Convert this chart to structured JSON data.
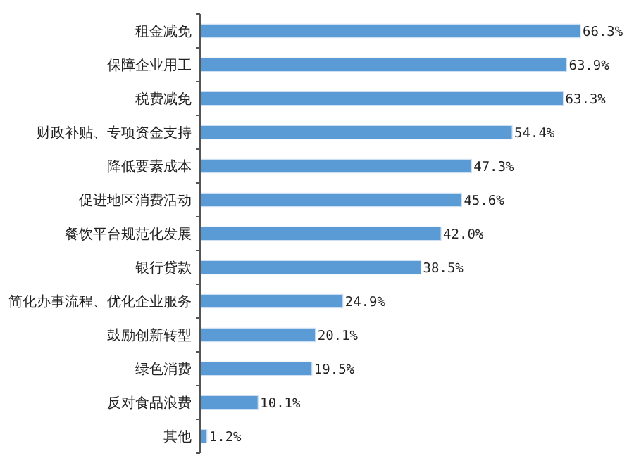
{
  "chart_data": {
    "type": "bar",
    "orientation": "horizontal",
    "categories": [
      "租金减免",
      "保障企业用工",
      "税费减免",
      "财政补贴、专项资金支持",
      "降低要素成本",
      "促进地区消费活动",
      "餐饮平台规范化发展",
      "银行贷款",
      "简化办事流程、优化企业服务",
      "鼓励创新转型",
      "绿色消费",
      "反对食品浪费",
      "其他"
    ],
    "values": [
      66.3,
      63.9,
      63.3,
      54.4,
      47.3,
      45.6,
      42.0,
      38.5,
      24.9,
      20.1,
      19.5,
      10.1,
      1.2
    ],
    "value_labels": [
      "66.3%",
      "63.9%",
      "63.3%",
      "54.4%",
      "47.3%",
      "45.6%",
      "42.0%",
      "38.5%",
      "24.9%",
      "20.1%",
      "19.5%",
      "10.1%",
      "1.2%"
    ],
    "color": "#5b9bd5"
  }
}
